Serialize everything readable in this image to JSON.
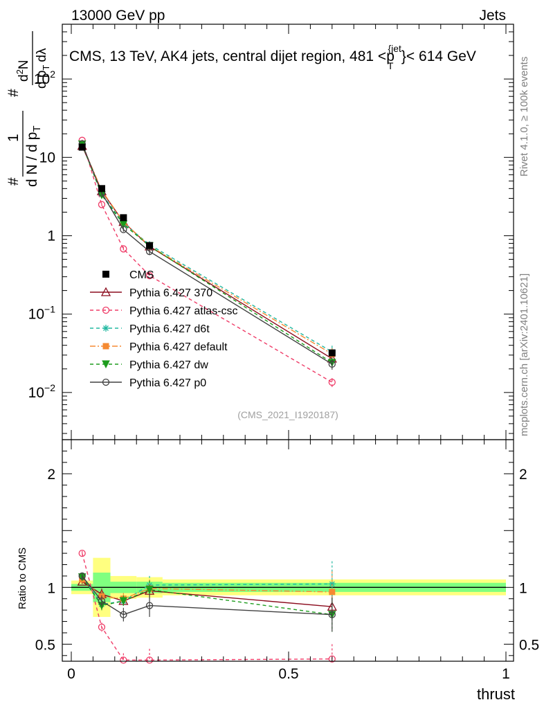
{
  "header": {
    "left": "13000 GeV pp",
    "right": "Jets"
  },
  "side": {
    "rivet": "Rivet 4.1.0, ≥ 100k events",
    "source": "mcplots.cern.ch [arXiv:2401.10621]"
  },
  "chart_data": {
    "type": "line",
    "title": "CMS, 13 TeV, AK4 jets, central dijet region, 481 <p",
    "title_sub": "T",
    "title_sup": "{jet",
    "title_end": "}< 614 GeV",
    "watermark": "(CMS_2021_I1920187)",
    "xlabel": "thrust",
    "ylabel_ratio": "Ratio to CMS",
    "ylabel_main": {
      "num_hash": "#",
      "num_one": "1",
      "den": "d N / d p",
      "den_sub": "T",
      "right_hash": "#",
      "right_top": "d",
      "right_top_sup": "2",
      "right_top_end": "N",
      "right_bot": "d p",
      "right_bot_sub": "T",
      "right_bot_end": "dλ"
    },
    "xlim": [
      -0.03,
      1.0
    ],
    "ylim_log": [
      0.0025,
      500
    ],
    "ylim_ratio": [
      0.35,
      2.3
    ],
    "x_ticks": [
      {
        "v": 0,
        "label": "0"
      },
      {
        "v": 0.5,
        "label": "0.5"
      },
      {
        "v": 1,
        "label": "1"
      }
    ],
    "y_ticks_main": [
      {
        "v": 0.01,
        "base": "10",
        "exp": "−2"
      },
      {
        "v": 0.1,
        "base": "10",
        "exp": "−1"
      },
      {
        "v": 1,
        "base": "1",
        "exp": ""
      },
      {
        "v": 10,
        "base": "10",
        "exp": ""
      },
      {
        "v": 100,
        "base": "10",
        "exp": "2"
      }
    ],
    "y_ticks_ratio": [
      {
        "v": 0.5,
        "label": "0.5"
      },
      {
        "v": 1,
        "label": "1"
      },
      {
        "v": 2,
        "label": "2"
      }
    ],
    "x": [
      0.025,
      0.07,
      0.12,
      0.18,
      0.6
    ],
    "bins": [
      [
        0.0,
        0.05
      ],
      [
        0.05,
        0.09
      ],
      [
        0.09,
        0.15
      ],
      [
        0.15,
        0.21
      ],
      [
        0.21,
        1.0
      ]
    ],
    "data": {
      "name": "CMS",
      "values": [
        13.5,
        4.0,
        1.7,
        0.75,
        0.032
      ],
      "band_inner": [
        0.03,
        0.13,
        0.05,
        0.05,
        0.04
      ],
      "band_outer": [
        0.06,
        0.26,
        0.1,
        0.09,
        0.07
      ]
    },
    "series": [
      {
        "name": "Pythia 6.427 370",
        "color": "#8b0c1e",
        "dash": "",
        "marker": "triangle-open",
        "values": [
          14.0,
          3.7,
          1.5,
          0.73,
          0.027
        ],
        "ratio": [
          1.05,
          0.94,
          0.88,
          0.97,
          0.83
        ],
        "ratio_err": [
          0.02,
          0.05,
          0.04,
          0.05,
          0.1
        ]
      },
      {
        "name": "Pythia 6.427 atlas-csc",
        "color": "#ef3b67",
        "dash": "5,4",
        "marker": "circle-open",
        "values": [
          16.5,
          2.5,
          0.68,
          0.31,
          0.0135
        ],
        "ratio": [
          1.3,
          0.65,
          0.36,
          0.36,
          0.37
        ],
        "ratio_err": [
          0.02,
          0.04,
          0.06,
          0.1,
          0.13
        ]
      },
      {
        "name": "Pythia 6.427 d6t",
        "color": "#20b8a0",
        "dash": "5,4",
        "marker": "star",
        "values": [
          14.8,
          3.4,
          1.45,
          0.77,
          0.033
        ],
        "ratio": [
          1.1,
          0.85,
          0.88,
          1.02,
          1.03
        ],
        "ratio_err": [
          0.02,
          0.05,
          0.05,
          0.08,
          0.2
        ]
      },
      {
        "name": "Pythia 6.427 default",
        "color": "#f58a32",
        "dash": "8,3,2,3",
        "marker": "square",
        "values": [
          14.5,
          3.8,
          1.5,
          0.74,
          0.031
        ],
        "ratio": [
          1.07,
          0.92,
          0.9,
          0.99,
          0.96
        ],
        "ratio_err": [
          0.02,
          0.05,
          0.05,
          0.08,
          0.18
        ]
      },
      {
        "name": "Pythia 6.427 dw",
        "color": "#1c9c1c",
        "dash": "5,4",
        "marker": "triangle-down",
        "values": [
          14.7,
          3.3,
          1.4,
          0.74,
          0.024
        ],
        "ratio": [
          1.09,
          0.84,
          0.88,
          0.98,
          0.76
        ],
        "ratio_err": [
          0.02,
          0.05,
          0.05,
          0.08,
          0.15
        ]
      },
      {
        "name": "Pythia 6.427 p0",
        "color": "#404040",
        "dash": "",
        "marker": "circle-open",
        "values": [
          14.9,
          3.5,
          1.2,
          0.63,
          0.023
        ],
        "ratio": [
          1.1,
          0.88,
          0.76,
          0.84,
          0.76
        ],
        "ratio_err": [
          0.02,
          0.05,
          0.06,
          0.1,
          0.15
        ]
      }
    ]
  }
}
